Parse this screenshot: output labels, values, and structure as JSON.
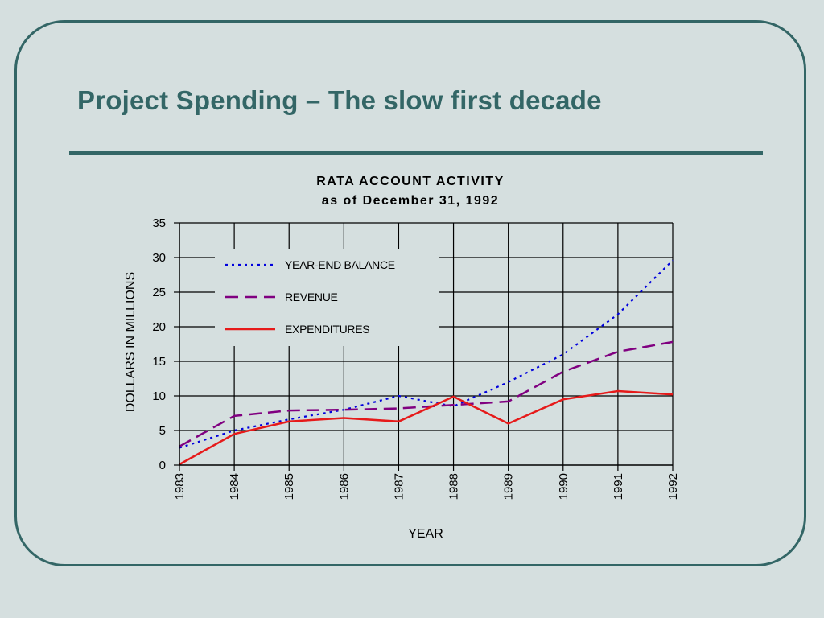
{
  "slide": {
    "title": "Project Spending – The slow first decade"
  },
  "colors": {
    "frame": "#336666",
    "title": "#336666",
    "background": "#d5dfdf",
    "year_end_balance": "#0000dd",
    "revenue": "#800080",
    "expenditures": "#e61a1a"
  },
  "chart_data": {
    "type": "line",
    "title": "RATA ACCOUNT ACTIVITY",
    "subtitle": "as of December 31, 1992",
    "xlabel": "YEAR",
    "ylabel": "DOLLARS IN MILLIONS",
    "x": [
      "1983",
      "1984",
      "1985",
      "1986",
      "1987",
      "1988",
      "1989",
      "1990",
      "1991",
      "1992"
    ],
    "yticks": [
      0,
      5,
      10,
      15,
      20,
      25,
      30,
      35
    ],
    "ylim": [
      0,
      35
    ],
    "grid": true,
    "legend_placement": "top-left",
    "series": [
      {
        "name": "YEAR-END BALANCE",
        "style": "dotted",
        "color": "#0000dd",
        "values": [
          2.5,
          5.0,
          6.6,
          8.0,
          10.0,
          8.5,
          12.0,
          16.0,
          21.8,
          29.6
        ]
      },
      {
        "name": "REVENUE",
        "style": "dashed",
        "color": "#800080",
        "values": [
          2.7,
          7.1,
          7.9,
          8.0,
          8.2,
          8.7,
          9.2,
          13.5,
          16.4,
          17.8
        ]
      },
      {
        "name": "EXPENDITURES",
        "style": "solid",
        "color": "#e61a1a",
        "values": [
          0.1,
          4.5,
          6.3,
          6.8,
          6.3,
          9.9,
          6.0,
          9.5,
          10.7,
          10.2
        ]
      }
    ]
  }
}
